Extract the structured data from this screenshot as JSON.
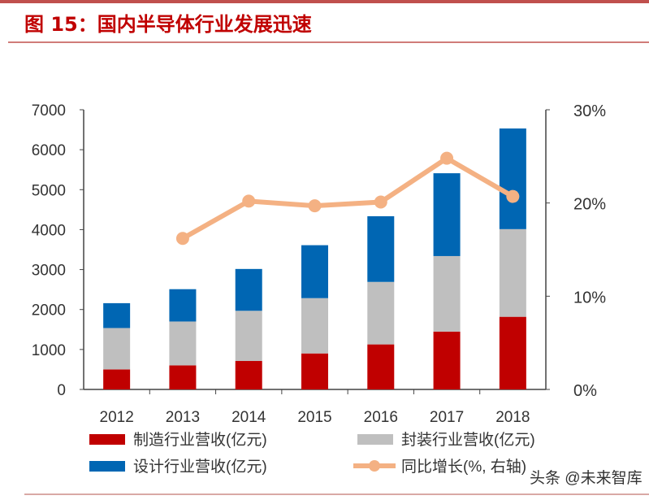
{
  "figure_title": "图 15：国内半导体行业发展迅速",
  "watermark": "头条 @未来智库",
  "colors": {
    "manufacturing": "#c00000",
    "packaging": "#bfbfbf",
    "design": "#0066b3",
    "growth": "#f4b183",
    "title": "#c00000"
  },
  "chart_data": {
    "type": "bar",
    "stacked": true,
    "title": "图 15：国内半导体行业发展迅速",
    "categories": [
      "2012",
      "2013",
      "2014",
      "2015",
      "2016",
      "2017",
      "2018"
    ],
    "series": [
      {
        "name": "制造行业营收(亿元)",
        "values": [
          501,
          601,
          712,
          901,
          1127,
          1448,
          1818
        ]
      },
      {
        "name": "封装行业营收(亿元)",
        "values": [
          1036,
          1099,
          1256,
          1384,
          1564,
          1890,
          2194
        ]
      },
      {
        "name": "设计行业营收(亿元)",
        "values": [
          622,
          809,
          1047,
          1325,
          1644,
          2073,
          2519
        ]
      },
      {
        "name": "同比增长(%, 右轴)",
        "type": "line",
        "axis": "right",
        "values": [
          null,
          16.2,
          20.2,
          19.7,
          20.1,
          24.8,
          20.7
        ]
      }
    ],
    "ylim": [
      0,
      7000
    ],
    "yticks": [
      "0",
      "1000",
      "2000",
      "3000",
      "4000",
      "5000",
      "6000",
      "7000"
    ],
    "y2lim": [
      0,
      30
    ],
    "y2ticks": [
      "0%",
      "10%",
      "20%",
      "30%"
    ],
    "legend_position": "bottom",
    "grid": false
  }
}
